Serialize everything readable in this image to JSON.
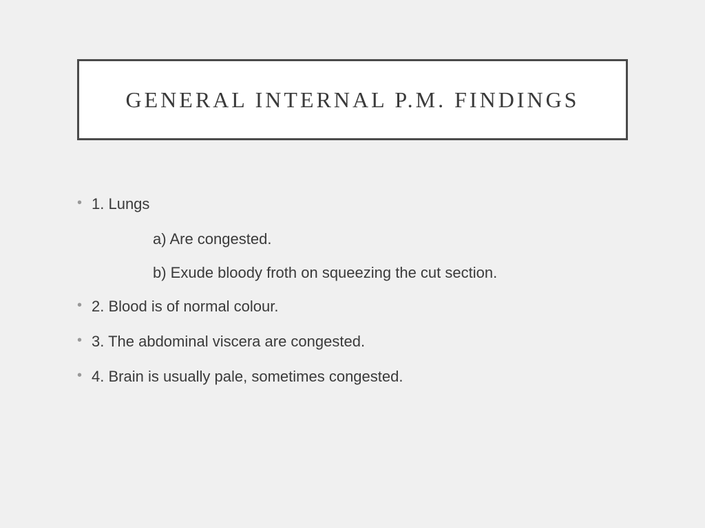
{
  "slide": {
    "title": "GENERAL INTERNAL P.M. FINDINGS",
    "background_color": "#f0f0f0",
    "title_box": {
      "background_color": "#ffffff",
      "border_color": "#4a4a4a",
      "border_width": 3,
      "font_family": "Georgia, serif",
      "font_size": 32,
      "letter_spacing": 4,
      "text_color": "#3a3a3a"
    },
    "body": {
      "font_family": "Trebuchet MS, sans-serif",
      "font_size": 22,
      "text_color": "#3a3a3a",
      "bullet_color": "#999999"
    },
    "items": [
      {
        "label": "1. Lungs",
        "sub": [
          "a) Are congested.",
          "b) Exude bloody froth on squeezing the cut section."
        ]
      },
      {
        "label": "2. Blood is of normal colour."
      },
      {
        "label": "3. The abdominal viscera are congested."
      },
      {
        "label": "4. Brain is usually pale, sometimes congested."
      }
    ]
  }
}
